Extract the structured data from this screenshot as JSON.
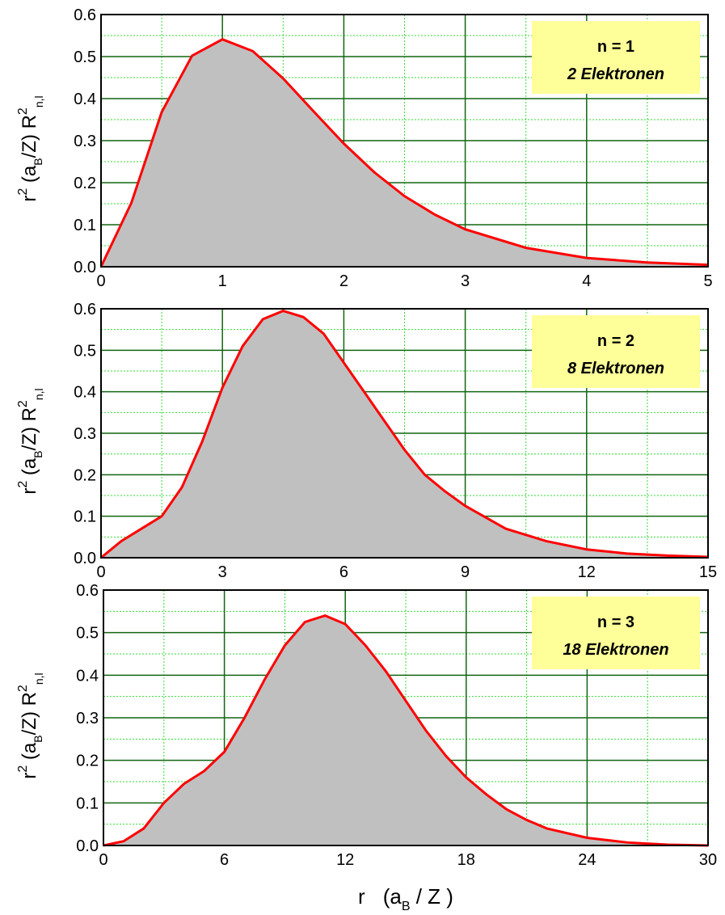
{
  "chart_data": [
    {
      "type": "area",
      "color": "#ff0000",
      "fill": "#c0c0c0",
      "grid": true,
      "x": [
        0,
        0.25,
        0.5,
        0.75,
        1,
        1.25,
        1.5,
        1.75,
        2,
        2.25,
        2.5,
        2.75,
        3,
        3.5,
        4,
        4.5,
        5
      ],
      "values": [
        0,
        0.152,
        0.368,
        0.502,
        0.541,
        0.513,
        0.448,
        0.37,
        0.293,
        0.225,
        0.168,
        0.124,
        0.089,
        0.045,
        0.021,
        0.01,
        0.0045
      ],
      "xlim": [
        0,
        5
      ],
      "ylim": [
        0,
        0.6
      ],
      "xticks": [
        0,
        1,
        2,
        3,
        4,
        5
      ],
      "yticks": [
        {
          "value": 0,
          "label": "0.0"
        },
        0.1,
        0.2,
        0.3,
        0.4,
        0.5,
        0.6
      ],
      "xminor": [
        0.5,
        1.5,
        2.5,
        3.5,
        4.5
      ],
      "yminor": [
        0.05,
        0.15,
        0.25,
        0.35,
        0.45,
        0.55
      ],
      "ylabel": [
        "r",
        "2",
        " (a",
        "B",
        "/Z) R",
        "2",
        "n,l"
      ],
      "annotation": [
        "n = 1",
        "2 Elektronen"
      ]
    },
    {
      "type": "area",
      "color": "#ff0000",
      "fill": "#c0c0c0",
      "grid": true,
      "x": [
        0,
        0.5,
        1,
        1.5,
        2,
        2.5,
        3,
        3.5,
        4,
        4.5,
        5,
        5.5,
        6,
        6.5,
        7,
        7.5,
        8,
        8.5,
        9,
        10,
        11,
        12,
        13,
        14,
        15
      ],
      "values": [
        0,
        0.04,
        0.07,
        0.1,
        0.17,
        0.28,
        0.41,
        0.51,
        0.575,
        0.595,
        0.58,
        0.54,
        0.47,
        0.4,
        0.33,
        0.26,
        0.2,
        0.16,
        0.125,
        0.07,
        0.04,
        0.02,
        0.01,
        0.005,
        0.002
      ],
      "xlim": [
        0,
        15
      ],
      "ylim": [
        0,
        0.6
      ],
      "xticks": [
        0,
        3,
        6,
        9,
        12,
        15
      ],
      "yticks": [
        {
          "value": 0,
          "label": "0.0"
        },
        0.1,
        0.2,
        0.3,
        0.4,
        0.5,
        0.6
      ],
      "xminor": [
        1.5,
        4.5,
        7.5,
        10.5,
        13.5
      ],
      "yminor": [
        0.05,
        0.15,
        0.25,
        0.35,
        0.45,
        0.55
      ],
      "ylabel": [
        "r",
        "2",
        " (a",
        "B",
        "/Z) R",
        "2",
        "n,l"
      ],
      "annotation": [
        "n = 2",
        "8 Elektronen"
      ]
    },
    {
      "type": "area",
      "color": "#ff0000",
      "fill": "#c0c0c0",
      "grid": true,
      "x": [
        0,
        1,
        2,
        3,
        4,
        5,
        6,
        7,
        8,
        9,
        10,
        11,
        12,
        13,
        14,
        15,
        16,
        17,
        18,
        19,
        20,
        21,
        22,
        24,
        26,
        28,
        30
      ],
      "values": [
        0,
        0.01,
        0.04,
        0.1,
        0.145,
        0.175,
        0.22,
        0.3,
        0.39,
        0.47,
        0.525,
        0.54,
        0.52,
        0.47,
        0.41,
        0.34,
        0.27,
        0.21,
        0.16,
        0.12,
        0.085,
        0.06,
        0.04,
        0.018,
        0.007,
        0.002,
        0
      ],
      "xlim": [
        0,
        30
      ],
      "ylim": [
        0,
        0.6
      ],
      "xticks": [
        0,
        6,
        12,
        18,
        24,
        30
      ],
      "yticks": [
        {
          "value": 0,
          "label": "0.0"
        },
        0.1,
        0.2,
        0.3,
        0.4,
        0.5,
        0.6
      ],
      "xminor": [
        3,
        9,
        15,
        21,
        27
      ],
      "yminor": [
        0.05,
        0.15,
        0.25,
        0.35,
        0.45,
        0.55
      ],
      "ylabel": [
        "r",
        "2",
        " (a",
        "B",
        "/Z) R",
        "2",
        "n,l"
      ],
      "xlabel": [
        "r",
        "(a",
        "B",
        " / Z )"
      ],
      "annotation": [
        "n = 3",
        "18 Elektronen"
      ]
    }
  ]
}
